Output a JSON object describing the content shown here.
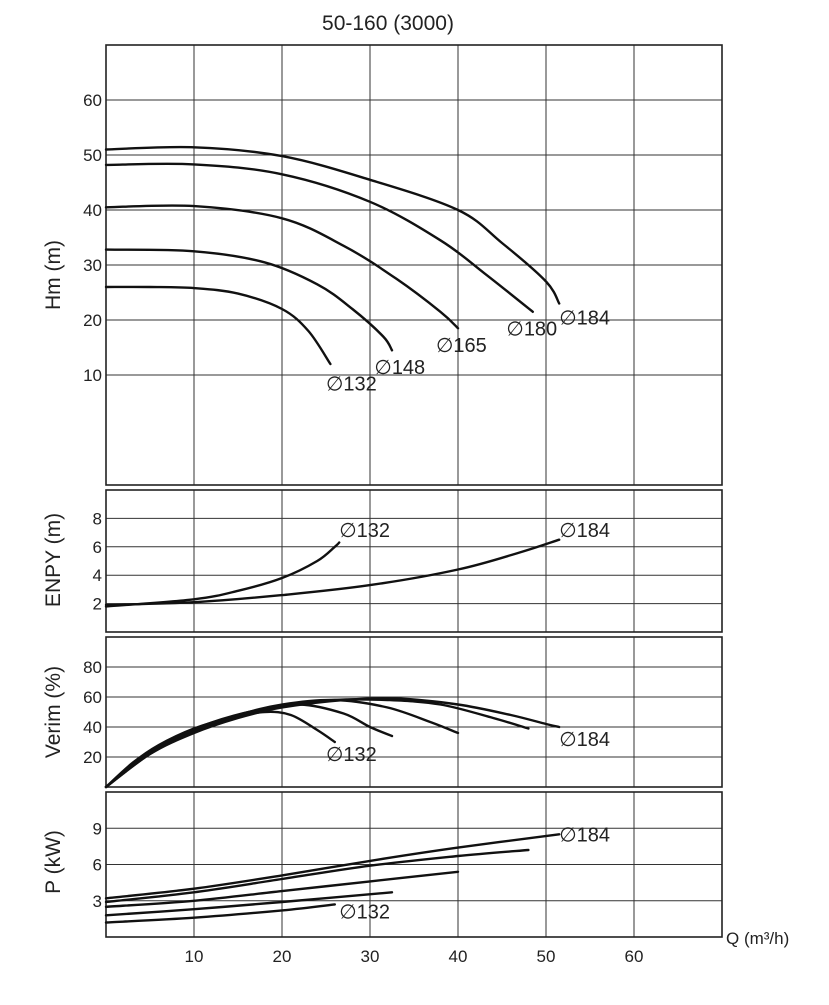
{
  "title": "50-160 (3000)",
  "x_axis": {
    "label": "Q (m³/h)",
    "range": [
      0,
      70
    ],
    "ticks": [
      10,
      20,
      30,
      40,
      50,
      60
    ],
    "grid": [
      10,
      20,
      30,
      40,
      50,
      60
    ]
  },
  "diameter_symbol": "∅",
  "chart_data": [
    {
      "id": "head",
      "type": "line",
      "ylabel": "Hm (m)",
      "ylim": [
        -10,
        70
      ],
      "yticks": [
        10,
        20,
        30,
        40,
        50,
        60
      ],
      "ygrid": [
        10,
        20,
        30,
        40,
        50,
        60
      ],
      "series": [
        {
          "name": "132",
          "points": [
            [
              0,
              26
            ],
            [
              5,
              26
            ],
            [
              10,
              25.8
            ],
            [
              15,
              24.8
            ],
            [
              20,
              22
            ],
            [
              23,
              18
            ],
            [
              25.5,
              12
            ]
          ],
          "label_at": [
            25,
            8.5
          ]
        },
        {
          "name": "148",
          "points": [
            [
              0,
              32.8
            ],
            [
              10,
              32.5
            ],
            [
              18,
              30.5
            ],
            [
              24,
              26.5
            ],
            [
              28,
              22
            ],
            [
              31.5,
              17
            ],
            [
              32.5,
              14.5
            ]
          ],
          "label_at": [
            30.5,
            11.5
          ]
        },
        {
          "name": "165",
          "points": [
            [
              0,
              40.5
            ],
            [
              10,
              40.7
            ],
            [
              20,
              38.5
            ],
            [
              27,
              33.5
            ],
            [
              33,
              27.5
            ],
            [
              38,
              21.5
            ],
            [
              40,
              18.5
            ]
          ],
          "label_at": [
            37.5,
            15.5
          ]
        },
        {
          "name": "180",
          "points": [
            [
              0,
              48.2
            ],
            [
              10,
              48.3
            ],
            [
              20,
              46.5
            ],
            [
              30,
              41.5
            ],
            [
              38,
              34.5
            ],
            [
              43,
              28.5
            ],
            [
              48.5,
              21.5
            ]
          ],
          "label_at": [
            45.5,
            18.5
          ]
        },
        {
          "name": "184",
          "points": [
            [
              0,
              51
            ],
            [
              10,
              51.4
            ],
            [
              20,
              49.8
            ],
            [
              30,
              45.5
            ],
            [
              40,
              40
            ],
            [
              45,
              34
            ],
            [
              50,
              27
            ],
            [
              51.5,
              23
            ]
          ],
          "label_at": [
            51.5,
            20.5
          ]
        }
      ]
    },
    {
      "id": "npsh",
      "type": "line",
      "ylabel": "ENPY (m)",
      "ylim": [
        0,
        10
      ],
      "yticks": [
        2,
        4,
        6,
        8
      ],
      "ygrid": [
        2,
        4,
        6,
        8
      ],
      "series": [
        {
          "name": "132",
          "points": [
            [
              0,
              1.8
            ],
            [
              10,
              2.3
            ],
            [
              15,
              2.9
            ],
            [
              20,
              3.8
            ],
            [
              24,
              5
            ],
            [
              26,
              6
            ],
            [
              26.5,
              6.3
            ]
          ],
          "label_at": [
            26.5,
            7.2
          ]
        },
        {
          "name": "184",
          "points": [
            [
              0,
              1.9
            ],
            [
              10,
              2.1
            ],
            [
              20,
              2.6
            ],
            [
              30,
              3.3
            ],
            [
              40,
              4.4
            ],
            [
              47,
              5.6
            ],
            [
              51.5,
              6.5
            ]
          ],
          "label_at": [
            51.5,
            7.2
          ]
        }
      ]
    },
    {
      "id": "efficiency",
      "type": "line",
      "ylabel": "Verim (%)",
      "ylim": [
        0,
        100
      ],
      "yticks": [
        20,
        40,
        60,
        80
      ],
      "ygrid": [
        20,
        40,
        60,
        80
      ],
      "series": [
        {
          "name": "132",
          "points": [
            [
              0,
              0
            ],
            [
              3,
              16
            ],
            [
              6,
              28
            ],
            [
              10,
              39
            ],
            [
              14,
              46
            ],
            [
              18,
              50
            ],
            [
              21,
              48
            ],
            [
              24,
              38
            ],
            [
              26,
              30
            ]
          ],
          "label_at": [
            25,
            22
          ]
        },
        {
          "name": "148",
          "points": [
            [
              0,
              0
            ],
            [
              4,
              19
            ],
            [
              8,
              33
            ],
            [
              12,
              43
            ],
            [
              17,
              51
            ],
            [
              22,
              55
            ],
            [
              27,
              49
            ],
            [
              30,
              40
            ],
            [
              32.5,
              34
            ]
          ]
        },
        {
          "name": "165",
          "points": [
            [
              0,
              0
            ],
            [
              5,
              23
            ],
            [
              10,
              38
            ],
            [
              15,
              48
            ],
            [
              20,
              55
            ],
            [
              26,
              58
            ],
            [
              32,
              53
            ],
            [
              37,
              43
            ],
            [
              40,
              36
            ]
          ]
        },
        {
          "name": "180",
          "points": [
            [
              0,
              0
            ],
            [
              5,
              22
            ],
            [
              10,
              37
            ],
            [
              15,
              47
            ],
            [
              20,
              54
            ],
            [
              26,
              58
            ],
            [
              32,
              58
            ],
            [
              38,
              55
            ],
            [
              44,
              46
            ],
            [
              48,
              39
            ]
          ]
        },
        {
          "name": "184",
          "points": [
            [
              0,
              0
            ],
            [
              5,
              22
            ],
            [
              10,
              36
            ],
            [
              15,
              46
            ],
            [
              20,
              53
            ],
            [
              27,
              58
            ],
            [
              33,
              59
            ],
            [
              40,
              55
            ],
            [
              46,
              48
            ],
            [
              50,
              42
            ],
            [
              51.5,
              40
            ]
          ],
          "label_at": [
            51.5,
            32
          ]
        }
      ]
    },
    {
      "id": "power",
      "type": "line",
      "ylabel": "P (kW)",
      "ylim": [
        0,
        12
      ],
      "yticks": [
        3,
        6,
        9
      ],
      "ygrid": [
        3,
        6,
        9
      ],
      "series": [
        {
          "name": "132",
          "points": [
            [
              0,
              1.2
            ],
            [
              10,
              1.6
            ],
            [
              20,
              2.2
            ],
            [
              26,
              2.7
            ]
          ],
          "label_at": [
            26.5,
            2.1
          ]
        },
        {
          "name": "148",
          "points": [
            [
              0,
              1.8
            ],
            [
              10,
              2.3
            ],
            [
              20,
              2.9
            ],
            [
              32.5,
              3.7
            ]
          ]
        },
        {
          "name": "165",
          "points": [
            [
              0,
              2.5
            ],
            [
              10,
              3
            ],
            [
              20,
              3.8
            ],
            [
              30,
              4.6
            ],
            [
              40,
              5.4
            ]
          ]
        },
        {
          "name": "180",
          "points": [
            [
              0,
              2.9
            ],
            [
              10,
              3.7
            ],
            [
              20,
              4.8
            ],
            [
              30,
              5.9
            ],
            [
              40,
              6.7
            ],
            [
              48,
              7.2
            ]
          ]
        },
        {
          "name": "184",
          "points": [
            [
              0,
              3.2
            ],
            [
              10,
              4
            ],
            [
              20,
              5.1
            ],
            [
              30,
              6.3
            ],
            [
              40,
              7.4
            ],
            [
              51.5,
              8.5
            ]
          ],
          "label_at": [
            51.5,
            8.5
          ]
        }
      ]
    }
  ]
}
